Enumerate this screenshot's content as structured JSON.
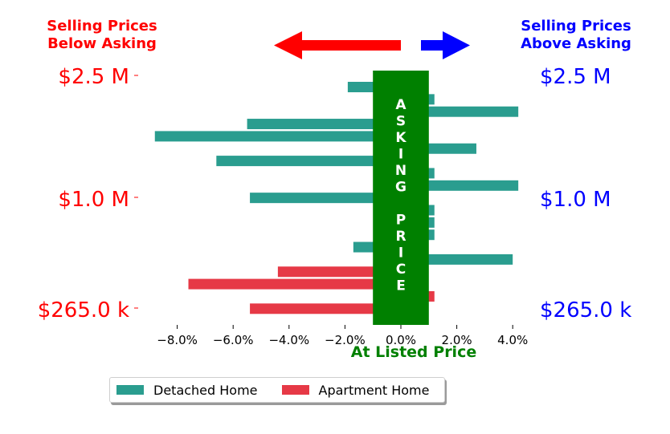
{
  "colors": {
    "detached": "#2a9d8f",
    "apartment": "#e63946",
    "below": "#ff0000",
    "above": "#0000ff",
    "asking": "#008000"
  },
  "header": {
    "left_line1": "Selling Prices",
    "left_line2": "Below Asking",
    "right_line1": "Selling Prices",
    "right_line2": "Above Asking"
  },
  "asking_band": {
    "letters": [
      "A",
      "S",
      "K",
      "I",
      "N",
      "G",
      "",
      "P",
      "R",
      "I",
      "C",
      "E"
    ],
    "x_min": -1.0,
    "x_max": 1.0,
    "label": "At Listed Price"
  },
  "legend": {
    "detached_label": "Detached Home",
    "apartment_label": "Apartment Home"
  },
  "chart_data": {
    "type": "bar",
    "orientation": "horizontal",
    "xlim": [
      -9.2,
      5.0
    ],
    "x_ticks": [
      -8,
      -6,
      -4,
      -2,
      0,
      2,
      4
    ],
    "x_tick_labels": [
      "−8.0%",
      "−6.0%",
      "−4.0%",
      "−2.0%",
      "0.0%",
      "2.0%",
      "4.0%"
    ],
    "y_tick_labels_left": [
      "$2.5 M",
      "$1.0 M",
      "$265.0 k"
    ],
    "y_tick_labels_right": [
      "$2.5 M",
      "$1.0 M",
      "$265.0 k"
    ],
    "y_tick_values": [
      2500000,
      1000000,
      265000
    ],
    "series": [
      {
        "name": "Detached Home",
        "color": "#2a9d8f"
      },
      {
        "name": "Apartment Home",
        "color": "#e63946"
      }
    ],
    "bars": [
      {
        "series": "Detached Home",
        "pct": -1.9
      },
      {
        "series": "Detached Home",
        "pct": 1.2
      },
      {
        "series": "Detached Home",
        "pct": 4.2
      },
      {
        "series": "Detached Home",
        "pct": -5.5
      },
      {
        "series": "Detached Home",
        "pct": -8.8
      },
      {
        "series": "Detached Home",
        "pct": 2.7
      },
      {
        "series": "Detached Home",
        "pct": -6.6
      },
      {
        "series": "Detached Home",
        "pct": 1.2
      },
      {
        "series": "Detached Home",
        "pct": 4.2
      },
      {
        "series": "Detached Home",
        "pct": -5.4
      },
      {
        "series": "Detached Home",
        "pct": 1.2
      },
      {
        "series": "Detached Home",
        "pct": 1.2
      },
      {
        "series": "Detached Home",
        "pct": 1.2
      },
      {
        "series": "Detached Home",
        "pct": -1.7
      },
      {
        "series": "Detached Home",
        "pct": 4.0
      },
      {
        "series": "Apartment Home",
        "pct": -4.4
      },
      {
        "series": "Apartment Home",
        "pct": -7.6
      },
      {
        "series": "Apartment Home",
        "pct": 1.2
      },
      {
        "series": "Apartment Home",
        "pct": -5.4
      }
    ]
  }
}
